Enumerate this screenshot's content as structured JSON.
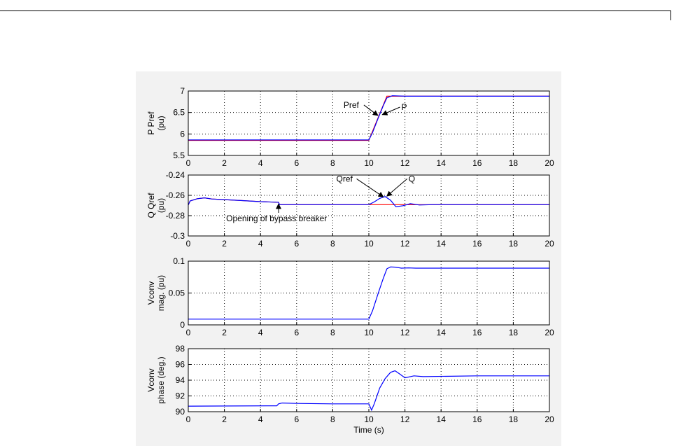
{
  "page": {
    "background": "#ffffff",
    "panel_color": "#f2f2f2"
  },
  "chart_data": [
    {
      "type": "line",
      "ylabel": [
        "P Pref",
        "(pu)"
      ],
      "xlim": [
        0,
        20
      ],
      "ylim": [
        5.5,
        7
      ],
      "xticks": [
        0,
        2,
        4,
        6,
        8,
        10,
        12,
        14,
        16,
        18,
        20
      ],
      "xtick_labels": [
        "0",
        "2",
        "4",
        "6",
        "8",
        "10",
        "12",
        "14",
        "16",
        "18",
        "20"
      ],
      "yticks": [
        5.5,
        6,
        6.5,
        7
      ],
      "ytick_labels": [
        "5.5",
        "6",
        "6.5",
        "7"
      ],
      "grid": true,
      "series": [
        {
          "name": "Pref",
          "color": "#ff0000",
          "x": [
            0,
            10,
            11,
            20
          ],
          "y": [
            5.85,
            5.85,
            6.88,
            6.88
          ]
        },
        {
          "name": "P",
          "color": "#0000ff",
          "x": [
            0,
            10,
            10.2,
            10.5,
            10.8,
            11.0,
            11.3,
            12,
            20
          ],
          "y": [
            5.86,
            5.86,
            6.03,
            6.35,
            6.66,
            6.84,
            6.89,
            6.88,
            6.88
          ]
        }
      ],
      "annotations": [
        {
          "text": "Pref",
          "text_x": 8.6,
          "text_y": 6.61,
          "arrow_to_x": 10.5,
          "arrow_to_y": 6.43
        },
        {
          "text": "P",
          "text_x": 11.8,
          "text_y": 6.56,
          "arrow_to_x": 10.75,
          "arrow_to_y": 6.45
        }
      ]
    },
    {
      "type": "line",
      "ylabel": [
        "Q Qref",
        "(pu)"
      ],
      "xlim": [
        0,
        20
      ],
      "ylim": [
        -0.3,
        -0.24
      ],
      "xticks": [
        0,
        2,
        4,
        6,
        8,
        10,
        12,
        14,
        16,
        18,
        20
      ],
      "xtick_labels": [
        "0",
        "2",
        "4",
        "6",
        "8",
        "10",
        "12",
        "14",
        "16",
        "18",
        "20"
      ],
      "yticks": [
        -0.3,
        -0.28,
        -0.26,
        -0.24
      ],
      "ytick_labels": [
        "-0.3",
        "-0.28",
        "-0.26",
        "-0.24"
      ],
      "grid": true,
      "series": [
        {
          "name": "Qref",
          "color": "#ff0000",
          "x": [
            0,
            0.1,
            0.5,
            0.9,
            1.3,
            2,
            3,
            4,
            5,
            5.05,
            20
          ],
          "y": [
            -0.2695,
            -0.2655,
            -0.2633,
            -0.2625,
            -0.2636,
            -0.2642,
            -0.2652,
            -0.2662,
            -0.2668,
            -0.2692,
            -0.2692
          ]
        },
        {
          "name": "Q",
          "color": "#0000ff",
          "x": [
            0,
            0.1,
            0.5,
            0.9,
            1.3,
            2,
            3,
            4,
            5,
            5.05,
            10,
            10.3,
            10.6,
            10.9,
            11.2,
            11.5,
            11.9,
            12.3,
            12.8,
            13.5,
            20
          ],
          "y": [
            -0.2695,
            -0.2655,
            -0.2633,
            -0.2625,
            -0.2636,
            -0.2642,
            -0.2652,
            -0.2662,
            -0.2668,
            -0.2692,
            -0.2692,
            -0.2665,
            -0.263,
            -0.2612,
            -0.2648,
            -0.2712,
            -0.2702,
            -0.2682,
            -0.2695,
            -0.2692,
            -0.2692
          ]
        }
      ],
      "annotations": [
        {
          "text": "Qref",
          "text_x": 8.2,
          "text_y": -0.2465,
          "arrow_to_x": 10.8,
          "arrow_to_y": -0.2615
        },
        {
          "text": "Q",
          "text_x": 12.2,
          "text_y": -0.2465,
          "arrow_to_x": 11.0,
          "arrow_to_y": -0.2608
        },
        {
          "text": "Opening of bypass breaker",
          "text_x": 2.1,
          "text_y": -0.2855,
          "arrow_to_x": 5.0,
          "arrow_to_y": -0.2685
        }
      ]
    },
    {
      "type": "line",
      "ylabel": [
        "Vconv",
        "mag. (pu)"
      ],
      "xlim": [
        0,
        20
      ],
      "ylim": [
        0,
        0.1
      ],
      "xticks": [
        0,
        2,
        4,
        6,
        8,
        10,
        12,
        14,
        16,
        18,
        20
      ],
      "xtick_labels": [
        "0",
        "2",
        "4",
        "6",
        "8",
        "10",
        "12",
        "14",
        "16",
        "18",
        "20"
      ],
      "yticks": [
        0,
        0.05,
        0.1
      ],
      "ytick_labels": [
        "0",
        "0.05",
        "0.1"
      ],
      "grid": true,
      "series": [
        {
          "name": "",
          "color": "#0000ff",
          "x": [
            0,
            10,
            10.2,
            10.5,
            10.8,
            11.0,
            11.2,
            11.5,
            11.8,
            12.2,
            12.6,
            20
          ],
          "y": [
            0.009,
            0.009,
            0.022,
            0.048,
            0.073,
            0.088,
            0.091,
            0.0905,
            0.089,
            0.0895,
            0.089,
            0.089
          ]
        }
      ]
    },
    {
      "type": "line",
      "ylabel": [
        "Vconv",
        "phase (deg.)"
      ],
      "xlabel": "Time (s)",
      "xlim": [
        0,
        20
      ],
      "ylim": [
        90,
        98
      ],
      "xticks": [
        0,
        2,
        4,
        6,
        8,
        10,
        12,
        14,
        16,
        18,
        20
      ],
      "xtick_labels": [
        "0",
        "2",
        "4",
        "6",
        "8",
        "10",
        "12",
        "14",
        "16",
        "18",
        "20"
      ],
      "yticks": [
        90,
        92,
        94,
        96,
        98
      ],
      "ytick_labels": [
        "90",
        "92",
        "94",
        "96",
        "98"
      ],
      "grid": true,
      "series": [
        {
          "name": "",
          "color": "#0000ff",
          "x": [
            0,
            2,
            4.9,
            5.0,
            5.2,
            6,
            8,
            10,
            10.15,
            10.3,
            10.6,
            10.9,
            11.2,
            11.45,
            11.7,
            12,
            12.5,
            13,
            16,
            20
          ],
          "y": [
            90.7,
            90.72,
            90.75,
            91.0,
            91.1,
            91.05,
            91.0,
            91.0,
            90.2,
            91.0,
            93.0,
            94.2,
            95.0,
            95.2,
            94.8,
            94.3,
            94.55,
            94.45,
            94.55,
            94.55
          ]
        }
      ]
    }
  ]
}
